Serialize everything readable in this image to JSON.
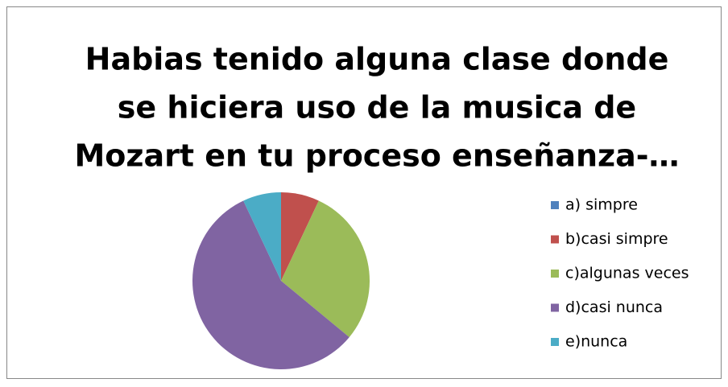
{
  "chart_data": {
    "type": "pie",
    "title": [
      "Habias tenido alguna clase donde",
      "se hiciera uso de la musica de",
      "Mozart en tu proceso enseñanza-…"
    ],
    "categories": [
      "a) simpre",
      "b)casi simpre",
      "c)algunas veces",
      "d)casi nunca",
      "e)nunca"
    ],
    "values": [
      0,
      7,
      29,
      57,
      7
    ],
    "colors": [
      "#4f81bd",
      "#c0504d",
      "#9bbb59",
      "#8064a2",
      "#4bacc6"
    ],
    "legend": "right"
  }
}
